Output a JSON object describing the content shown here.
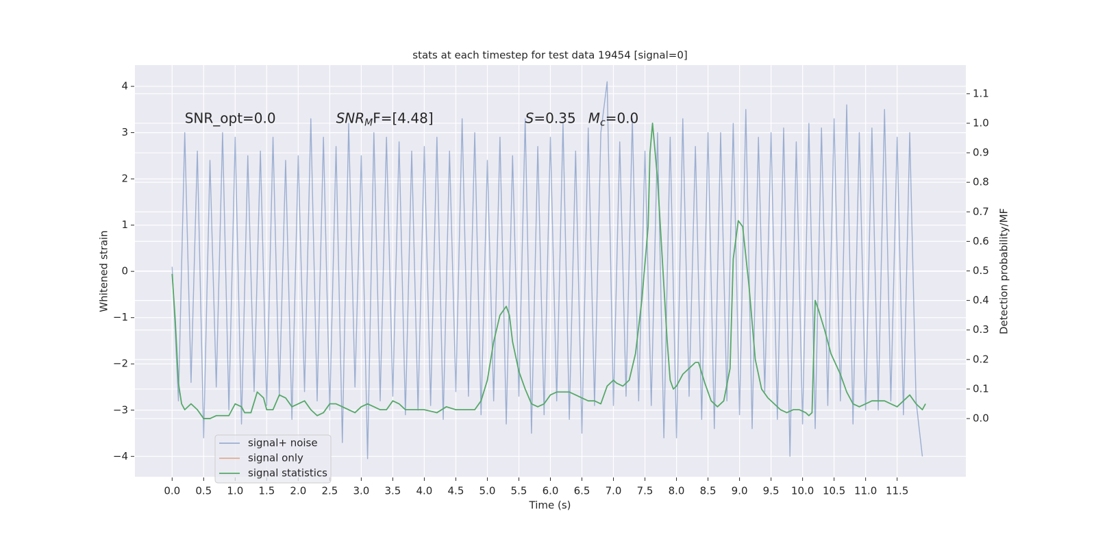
{
  "chart_data": {
    "type": "line",
    "title": "stats at each timestep for test data 19454 [signal=0]",
    "xlabel": "Time (s)",
    "ylabel": "Whitened strain",
    "y2label": "Detection probability/MF",
    "xlim": [
      -0.59,
      12.59
    ],
    "ylim": [
      -4.44,
      4.46
    ],
    "y2lim": [
      -0.197,
      1.197
    ],
    "xticks": [
      {
        "value": 0,
        "label": "0.0"
      },
      0.5,
      {
        "value": 1,
        "label": "1.0"
      },
      1.5,
      {
        "value": 2,
        "label": "2.0"
      },
      2.5,
      {
        "value": 3,
        "label": "3.0"
      },
      3.5,
      {
        "value": 4,
        "label": "4.0"
      },
      4.5,
      {
        "value": 5,
        "label": "5.0"
      },
      5.5,
      {
        "value": 6,
        "label": "6.0"
      },
      6.5,
      {
        "value": 7,
        "label": "7.0"
      },
      7.5,
      {
        "value": 8,
        "label": "8.0"
      },
      8.5,
      {
        "value": 9,
        "label": "9.0"
      },
      9.5,
      {
        "value": 10,
        "label": "10.0"
      },
      10.5,
      {
        "value": 11,
        "label": "11.0"
      },
      11.5
    ],
    "yticks": [
      {
        "value": -4,
        "label": "−4"
      },
      {
        "value": -3,
        "label": "−3"
      },
      {
        "value": -2,
        "label": "−2"
      },
      {
        "value": -1,
        "label": "−1"
      },
      0,
      1,
      2,
      3,
      4
    ],
    "y2ticks": [
      {
        "value": 0,
        "label": "0.0"
      },
      0.1,
      0.2,
      0.3,
      0.4,
      0.5,
      0.6,
      0.7,
      0.8,
      0.9,
      {
        "value": 1,
        "label": "1.0"
      },
      1.1
    ],
    "grid": true,
    "legend": "lower left",
    "annotations": [
      {
        "parts": [
          "SNR_opt=0.0"
        ],
        "styles": [
          "normal"
        ]
      },
      {
        "parts": [
          "SNR",
          "M",
          "F=[4.48]"
        ],
        "styles": [
          "italic",
          "sub",
          "normal"
        ]
      },
      {
        "parts": [
          "S",
          "=0.35"
        ],
        "styles": [
          "italic",
          "normal"
        ]
      },
      {
        "parts": [
          "M",
          "c",
          "=0.0"
        ],
        "styles": [
          "italic",
          "sub",
          "normal"
        ]
      }
    ],
    "series": [
      {
        "name": "signal+ noise",
        "color": "#4c72b0",
        "opacity": 0.5,
        "x": [
          0.0,
          0.1,
          0.2,
          0.3,
          0.4,
          0.5,
          0.6,
          0.7,
          0.8,
          0.9,
          1.0,
          1.1,
          1.2,
          1.3,
          1.4,
          1.5,
          1.6,
          1.7,
          1.8,
          1.9,
          2.0,
          2.1,
          2.2,
          2.3,
          2.4,
          2.5,
          2.6,
          2.7,
          2.8,
          2.9,
          3.0,
          3.1,
          3.2,
          3.3,
          3.4,
          3.5,
          3.6,
          3.7,
          3.8,
          3.9,
          4.0,
          4.1,
          4.2,
          4.3,
          4.4,
          4.5,
          4.6,
          4.7,
          4.8,
          4.9,
          5.0,
          5.1,
          5.2,
          5.3,
          5.4,
          5.5,
          5.6,
          5.7,
          5.8,
          5.9,
          6.0,
          6.1,
          6.2,
          6.3,
          6.4,
          6.5,
          6.6,
          6.7,
          6.8,
          6.9,
          7.0,
          7.1,
          7.2,
          7.3,
          7.4,
          7.5,
          7.6,
          7.7,
          7.8,
          7.9,
          8.0,
          8.1,
          8.2,
          8.3,
          8.4,
          8.5,
          8.6,
          8.7,
          8.8,
          8.9,
          9.0,
          9.1,
          9.2,
          9.3,
          9.4,
          9.5,
          9.6,
          9.7,
          9.8,
          9.9,
          10.0,
          10.1,
          10.2,
          10.3,
          10.4,
          10.5,
          10.6,
          10.7,
          10.8,
          10.9,
          11.0,
          11.1,
          11.2,
          11.3,
          11.4,
          11.5,
          11.6,
          11.7,
          11.8,
          11.9
        ],
        "values": [
          0.1,
          -2.8,
          3.0,
          -2.4,
          2.6,
          -3.6,
          2.4,
          -2.5,
          3.0,
          -3.0,
          2.9,
          -3.3,
          2.5,
          -2.6,
          2.6,
          -2.9,
          2.9,
          -2.7,
          2.4,
          -3.2,
          2.5,
          -2.6,
          3.3,
          -2.8,
          2.9,
          -3.0,
          2.7,
          -3.7,
          3.2,
          -2.5,
          2.5,
          -4.05,
          3.0,
          -2.8,
          2.9,
          -2.7,
          2.8,
          -3.1,
          2.6,
          -3.0,
          2.7,
          -2.9,
          2.9,
          -3.2,
          2.6,
          -2.6,
          3.3,
          -2.7,
          3.0,
          -3.1,
          2.4,
          -2.8,
          2.9,
          -3.3,
          2.5,
          -2.7,
          3.3,
          -3.5,
          2.7,
          -3.1,
          2.9,
          -2.8,
          3.2,
          -3.2,
          2.6,
          -3.5,
          3.1,
          -2.9,
          3.0,
          4.1,
          -2.9,
          2.8,
          -2.7,
          3.3,
          -2.8,
          2.6,
          -2.9,
          3.0,
          -3.6,
          2.9,
          -3.6,
          3.3,
          -2.7,
          2.7,
          -3.2,
          3.0,
          -3.4,
          3.0,
          -2.8,
          3.2,
          -3.1,
          3.5,
          -3.4,
          2.9,
          -2.6,
          3.0,
          -3.2,
          3.1,
          -4.0,
          2.8,
          -3.3,
          3.2,
          -3.4,
          3.1,
          -2.9,
          3.3,
          -2.8,
          3.6,
          -3.3,
          3.0,
          -3.0,
          3.1,
          -3.0,
          3.5,
          -2.8,
          2.9,
          -3.1,
          3.0,
          -2.8,
          -4.0
        ]
      },
      {
        "name": "signal only",
        "color": "#dd8452",
        "x": [],
        "values": []
      },
      {
        "name": "signal statistics",
        "color": "#55a868",
        "axis": "y2",
        "x": [
          0.0,
          0.05,
          0.1,
          0.15,
          0.2,
          0.3,
          0.4,
          0.5,
          0.6,
          0.7,
          0.8,
          0.9,
          1.0,
          1.1,
          1.15,
          1.25,
          1.35,
          1.45,
          1.5,
          1.6,
          1.7,
          1.8,
          1.9,
          2.0,
          2.1,
          2.2,
          2.3,
          2.4,
          2.5,
          2.6,
          2.7,
          2.8,
          2.9,
          3.0,
          3.1,
          3.2,
          3.3,
          3.4,
          3.5,
          3.6,
          3.7,
          3.8,
          4.0,
          4.2,
          4.35,
          4.5,
          4.7,
          4.8,
          4.9,
          5.0,
          5.1,
          5.2,
          5.3,
          5.35,
          5.4,
          5.5,
          5.6,
          5.7,
          5.8,
          5.9,
          6.0,
          6.1,
          6.2,
          6.3,
          6.4,
          6.5,
          6.6,
          6.7,
          6.8,
          6.9,
          7.0,
          7.05,
          7.15,
          7.25,
          7.35,
          7.45,
          7.55,
          7.58,
          7.62,
          7.7,
          7.8,
          7.85,
          7.9,
          7.95,
          8.0,
          8.1,
          8.2,
          8.3,
          8.35,
          8.45,
          8.55,
          8.65,
          8.75,
          8.85,
          8.9,
          8.98,
          9.05,
          9.15,
          9.25,
          9.35,
          9.45,
          9.55,
          9.65,
          9.75,
          9.85,
          9.95,
          10.05,
          10.1,
          10.15,
          10.2,
          10.25,
          10.35,
          10.45,
          10.6,
          10.7,
          10.8,
          10.9,
          11.0,
          11.1,
          11.2,
          11.3,
          11.4,
          11.5,
          11.6,
          11.7,
          11.8,
          11.9,
          11.95
        ],
        "values": [
          0.49,
          0.33,
          0.12,
          0.05,
          0.03,
          0.05,
          0.03,
          0.0,
          0.0,
          0.01,
          0.01,
          0.01,
          0.05,
          0.04,
          0.02,
          0.02,
          0.09,
          0.07,
          0.03,
          0.03,
          0.08,
          0.07,
          0.04,
          0.05,
          0.06,
          0.03,
          0.01,
          0.02,
          0.05,
          0.05,
          0.04,
          0.03,
          0.02,
          0.04,
          0.05,
          0.04,
          0.03,
          0.03,
          0.06,
          0.05,
          0.03,
          0.03,
          0.03,
          0.02,
          0.04,
          0.03,
          0.03,
          0.03,
          0.06,
          0.13,
          0.26,
          0.35,
          0.38,
          0.35,
          0.26,
          0.16,
          0.1,
          0.05,
          0.04,
          0.05,
          0.08,
          0.09,
          0.09,
          0.09,
          0.08,
          0.07,
          0.06,
          0.06,
          0.05,
          0.11,
          0.13,
          0.12,
          0.11,
          0.13,
          0.22,
          0.4,
          0.65,
          0.9,
          1.0,
          0.81,
          0.45,
          0.27,
          0.13,
          0.1,
          0.11,
          0.15,
          0.17,
          0.19,
          0.19,
          0.12,
          0.06,
          0.04,
          0.06,
          0.17,
          0.54,
          0.67,
          0.65,
          0.45,
          0.2,
          0.1,
          0.07,
          0.05,
          0.03,
          0.02,
          0.03,
          0.03,
          0.02,
          0.01,
          0.02,
          0.4,
          0.37,
          0.3,
          0.22,
          0.15,
          0.09,
          0.05,
          0.04,
          0.05,
          0.06,
          0.06,
          0.06,
          0.05,
          0.04,
          0.06,
          0.08,
          0.05,
          0.03,
          0.05
        ]
      }
    ]
  }
}
